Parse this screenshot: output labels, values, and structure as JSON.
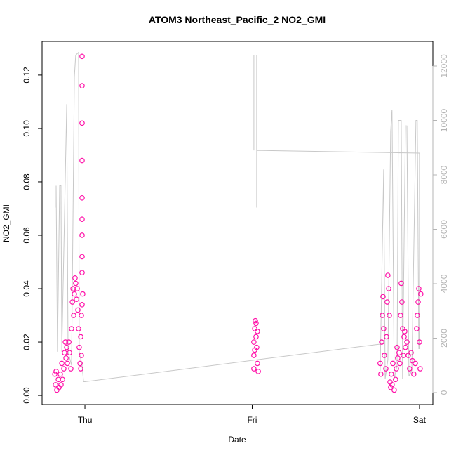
{
  "chart_data": {
    "type": "scatter",
    "title": "ATOM3 Northeast_Pacific_2 NO2_GMI",
    "x_label": "Date",
    "y_label": "NO2_GMI",
    "color": "#ff10a8",
    "x": [
      -0.18,
      -0.176,
      -0.172,
      -0.168,
      -0.159,
      -0.155,
      -0.147,
      -0.143,
      -0.138,
      -0.134,
      -0.126,
      -0.122,
      -0.117,
      -0.113,
      -0.109,
      -0.105,
      -0.096,
      -0.092,
      -0.084,
      -0.08,
      -0.075,
      -0.071,
      -0.067,
      -0.063,
      -0.059,
      -0.055,
      -0.05,
      -0.046,
      -0.042,
      -0.038,
      -0.034,
      -0.029,
      -0.025,
      -0.021,
      -0.017,
      -0.017,
      -0.017,
      -0.017,
      -0.017,
      -0.017,
      -0.017,
      -0.017,
      -0.017,
      -0.013,
      -0.021,
      -0.025,
      -0.017,
      1.01,
      1.01,
      1.01,
      1.015,
      1.019,
      1.023,
      1.027,
      1.031,
      1.036,
      1.015,
      1.023,
      1.031,
      1.765,
      1.769,
      1.774,
      1.778,
      1.782,
      1.786,
      1.79,
      1.799,
      1.803,
      1.807,
      1.811,
      1.816,
      1.82,
      1.824,
      1.828,
      1.832,
      1.836,
      1.841,
      1.849,
      1.857,
      1.862,
      1.866,
      1.87,
      1.878,
      1.883,
      1.887,
      1.891,
      1.895,
      1.899,
      1.904,
      1.908,
      1.912,
      1.916,
      1.925,
      1.933,
      1.941,
      1.95,
      1.958,
      1.966,
      1.975,
      1.983,
      1.987,
      1.992,
      1.996,
      2.0,
      2.004,
      2.008
    ],
    "values": [
      0.008,
      0.004,
      0.009,
      0.002,
      0.006,
      0.003,
      0.008,
      0.004,
      0.012,
      0.006,
      0.01,
      0.016,
      0.02,
      0.014,
      0.018,
      0.012,
      0.02,
      0.016,
      0.01,
      0.025,
      0.035,
      0.04,
      0.03,
      0.038,
      0.044,
      0.042,
      0.036,
      0.04,
      0.032,
      0.025,
      0.018,
      0.012,
      0.022,
      0.03,
      0.127,
      0.116,
      0.102,
      0.088,
      0.074,
      0.066,
      0.06,
      0.052,
      0.046,
      0.038,
      0.015,
      0.01,
      0.034,
      0.01,
      0.015,
      0.02,
      0.025,
      0.028,
      0.022,
      0.018,
      0.012,
      0.009,
      0.017,
      0.027,
      0.024,
      0.012,
      0.008,
      0.02,
      0.03,
      0.037,
      0.025,
      0.015,
      0.01,
      0.022,
      0.035,
      0.045,
      0.04,
      0.03,
      0.005,
      0.003,
      0.008,
      0.004,
      0.012,
      0.002,
      0.006,
      0.01,
      0.018,
      0.014,
      0.016,
      0.012,
      0.03,
      0.042,
      0.035,
      0.025,
      0.015,
      0.022,
      0.024,
      0.018,
      0.02,
      0.015,
      0.01,
      0.016,
      0.013,
      0.008,
      0.012,
      0.025,
      0.03,
      0.035,
      0.04,
      0.02,
      0.01,
      0.038
    ],
    "altitude": {
      "axis": "y2",
      "color": "#c8c8c8",
      "x": [
        -0.172,
        -0.172,
        -0.164,
        -0.151,
        -0.143,
        -0.138,
        -0.109,
        -0.101,
        -0.08,
        -0.063,
        -0.055,
        -0.038,
        -0.034,
        -0.017,
        -0.008,
        0.0,
        1.79,
        null,
        1.01,
        1.01,
        1.027,
        1.027,
        1.027,
        2.0,
        2.0,
        null,
        1.765,
        1.786,
        1.795,
        1.811,
        1.828,
        1.836,
        1.849,
        1.866,
        1.874,
        1.891,
        1.899,
        1.916,
        1.925,
        1.937,
        1.954,
        1.979,
        1.987,
        1.996
      ],
      "values": [
        6800,
        7600,
        1500,
        7600,
        7600,
        1500,
        10600,
        1500,
        1000,
        11600,
        12400,
        12500,
        1500,
        1000,
        400,
        400,
        1800,
        null,
        8900,
        12400,
        12400,
        6800,
        8900,
        8800,
        1600,
        null,
        800,
        8200,
        500,
        1200,
        9600,
        10400,
        500,
        1000,
        10000,
        10000,
        500,
        9800,
        9800,
        600,
        800,
        10000,
        10000,
        1600
      ]
    },
    "xlim": [
      -0.256,
      2.08
    ],
    "xticks": [
      {
        "value": 0,
        "label": "Thu"
      },
      {
        "value": 1,
        "label": "Fri"
      },
      {
        "value": 2,
        "label": "Sat"
      }
    ],
    "ylim": [
      -0.0034,
      0.1326
    ],
    "yticks": [
      {
        "value": 0,
        "label": "0.00"
      },
      {
        "value": 0.02,
        "label": "0.02"
      },
      {
        "value": 0.04,
        "label": "0.04"
      },
      {
        "value": 0.06,
        "label": "0.06"
      },
      {
        "value": 0.08,
        "label": "0.08"
      },
      {
        "value": 0.1,
        "label": "0.10"
      },
      {
        "value": 0.12,
        "label": "0.12"
      }
    ],
    "y2lim": [
      -439,
      12903
    ],
    "y2ticks": [
      0,
      2000,
      4000,
      6000,
      8000,
      10000,
      12000
    ],
    "y2_color": "#b4b4b4"
  }
}
